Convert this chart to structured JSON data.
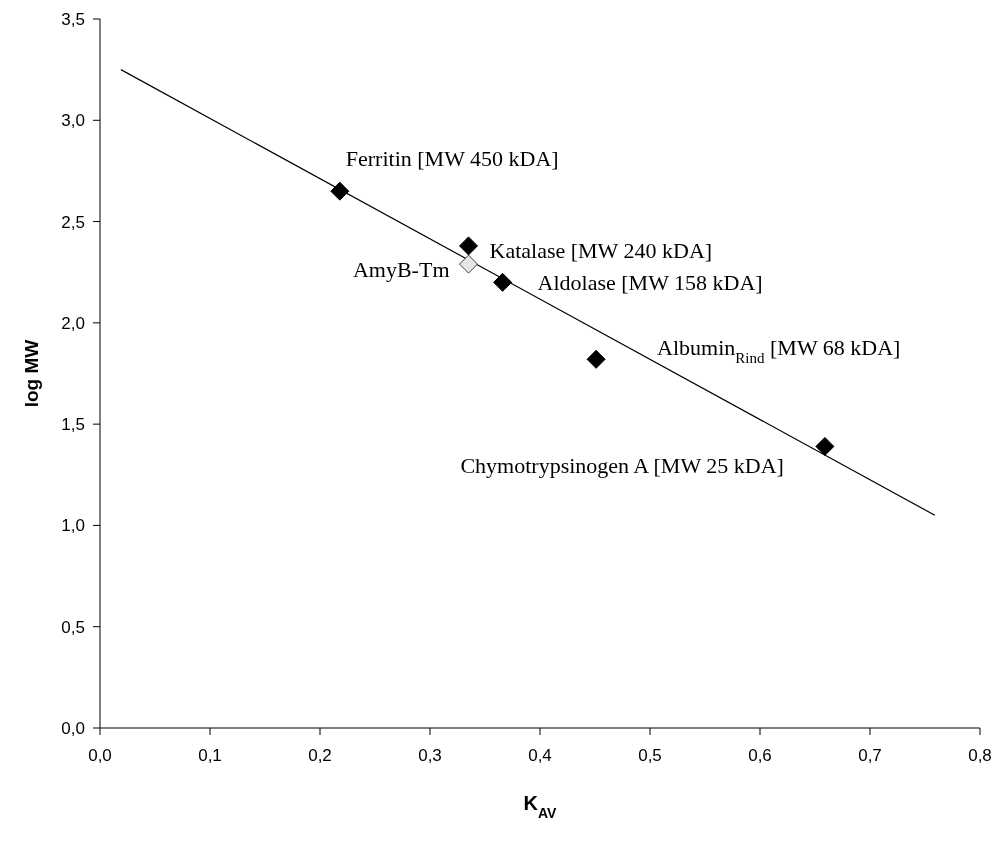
{
  "chart_data": {
    "type": "scatter",
    "xlabel": "K$_{AV}$",
    "ylabel": "log MW",
    "xlim": [
      0,
      0.8
    ],
    "ylim": [
      0,
      3.5
    ],
    "xticks": [
      {
        "value": 0,
        "label": "0,0"
      },
      {
        "value": 0.1,
        "label": "0,1"
      },
      {
        "value": 0.2,
        "label": "0,2"
      },
      {
        "value": 0.3,
        "label": "0,3"
      },
      {
        "value": 0.4,
        "label": "0,4"
      },
      {
        "value": 0.5,
        "label": "0,5"
      },
      {
        "value": 0.6,
        "label": "0,6"
      },
      {
        "value": 0.7,
        "label": "0,7"
      },
      {
        "value": 0.8,
        "label": "0,8"
      }
    ],
    "yticks": [
      {
        "value": 0,
        "label": "0,0"
      },
      {
        "value": 0.5,
        "label": "0,5"
      },
      {
        "value": 1,
        "label": "1,0"
      },
      {
        "value": 1.5,
        "label": "1,5"
      },
      {
        "value": 2,
        "label": "2,0"
      },
      {
        "value": 2.5,
        "label": "2,5"
      },
      {
        "value": 3,
        "label": "3,0"
      },
      {
        "value": 3.5,
        "label": "3,5"
      }
    ],
    "series": [
      {
        "marker": "diamond",
        "color": "#000000",
        "x": [
          0.218,
          0.335,
          0.366,
          0.451,
          0.659
        ],
        "values": [
          2.65,
          2.38,
          2.2,
          1.82,
          1.39
        ]
      },
      {
        "marker": "diamond",
        "color": "#e6e6e6",
        "x": [
          0.335
        ],
        "values": [
          2.29
        ]
      },
      {
        "type": "line",
        "marker": "none",
        "color": "#000000",
        "x": [
          0.019,
          0.759
        ],
        "values": [
          3.25,
          1.05
        ]
      }
    ],
    "annotations": [
      {
        "text": "Ferritin [MW 450 kDA]",
        "x": 0.218,
        "y": 2.65
      },
      {
        "text": "Katalase [MW 240 kDA]",
        "x": 0.335,
        "y": 2.38
      },
      {
        "text": "AmyB-Tm",
        "x": 0.335,
        "y": 2.29
      },
      {
        "text": "Aldolase [MW 158 kDA]",
        "x": 0.366,
        "y": 2.2
      },
      {
        "text": "Albumin$_{Rind}$ [MW 68 kDA]",
        "x": 0.451,
        "y": 1.82
      },
      {
        "text": "Chymotrypsinogen A [MW 25 kDA]",
        "x": 0.659,
        "y": 1.39
      }
    ]
  }
}
